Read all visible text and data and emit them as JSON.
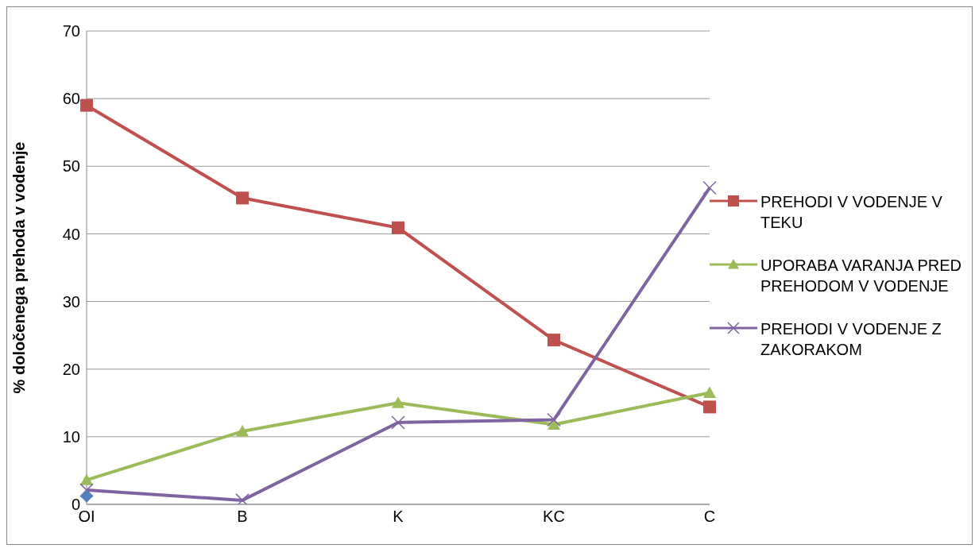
{
  "chart_data": {
    "type": "line",
    "ylabel": "% določenega prehoda v vodenje",
    "categories": [
      "OI",
      "B",
      "K",
      "KC",
      "C"
    ],
    "series": [
      {
        "name": "PREHODI V VODENJE V TEKU",
        "color": "#c0504d",
        "marker": "square",
        "values": [
          59.0,
          45.3,
          40.9,
          24.3,
          14.4
        ]
      },
      {
        "name": "UPORABA VARANJA PRED PREHODOM V VODENJE",
        "color": "#9bbb59",
        "marker": "triangle",
        "values": [
          3.6,
          10.8,
          15.0,
          11.8,
          16.5
        ]
      },
      {
        "name": "PREHODI V VODENJE Z ZAKORAKOM",
        "color": "#8064a2",
        "marker": "cross",
        "values": [
          2.1,
          0.6,
          12.1,
          12.5,
          46.8
        ]
      },
      {
        "color": "#4f81bd",
        "marker": "diamond",
        "values": [
          1.2,
          null,
          null,
          null,
          null
        ]
      }
    ],
    "ylim": [
      0,
      70
    ],
    "yticks": [
      0,
      10,
      20,
      30,
      40,
      50,
      60,
      70
    ],
    "grid": "y",
    "legend": "right"
  }
}
